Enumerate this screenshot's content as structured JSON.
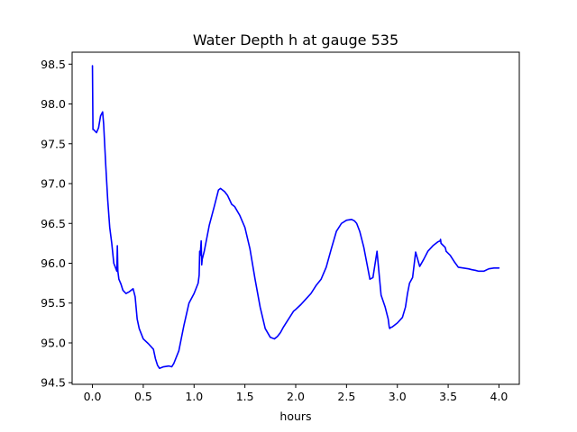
{
  "chart_data": {
    "type": "line",
    "title": "Water Depth h at gauge 535",
    "xlabel": "hours",
    "ylabel": "",
    "xlim": [
      -0.2,
      4.2
    ],
    "ylim": [
      94.48,
      98.65
    ],
    "grid": false,
    "legend": "none",
    "x_ticks": [
      0.0,
      0.5,
      1.0,
      1.5,
      2.0,
      2.5,
      3.0,
      3.5,
      4.0
    ],
    "x_tick_labels": [
      "0.0",
      "0.5",
      "1.0",
      "1.5",
      "2.0",
      "2.5",
      "3.0",
      "3.5",
      "4.0"
    ],
    "y_ticks": [
      94.5,
      95.0,
      95.5,
      96.0,
      96.5,
      97.0,
      97.5,
      98.0,
      98.5
    ],
    "y_tick_labels": [
      "94.5",
      "95.0",
      "95.5",
      "96.0",
      "96.5",
      "97.0",
      "97.5",
      "98.0",
      "98.5"
    ],
    "series": [
      {
        "color": "#0000ff",
        "x": [
          0.0,
          0.005,
          0.01,
          0.04,
          0.06,
          0.08,
          0.1,
          0.11,
          0.13,
          0.15,
          0.17,
          0.19,
          0.21,
          0.24,
          0.245,
          0.25,
          0.26,
          0.28,
          0.3,
          0.33,
          0.36,
          0.4,
          0.42,
          0.44,
          0.46,
          0.5,
          0.55,
          0.6,
          0.62,
          0.64,
          0.66,
          0.7,
          0.75,
          0.78,
          0.8,
          0.85,
          0.9,
          0.95,
          1.0,
          1.04,
          1.05,
          1.055,
          1.06,
          1.07,
          1.075,
          1.08,
          1.1,
          1.15,
          1.2,
          1.24,
          1.26,
          1.3,
          1.33,
          1.37,
          1.4,
          1.45,
          1.5,
          1.55,
          1.6,
          1.65,
          1.7,
          1.75,
          1.79,
          1.82,
          1.85,
          1.88,
          1.92,
          1.98,
          2.0,
          2.05,
          2.1,
          2.15,
          2.2,
          2.25,
          2.3,
          2.35,
          2.4,
          2.45,
          2.5,
          2.55,
          2.58,
          2.6,
          2.63,
          2.67,
          2.7,
          2.73,
          2.76,
          2.8,
          2.84,
          2.88,
          2.91,
          2.92,
          2.925,
          2.93,
          2.95,
          3.0,
          3.05,
          3.08,
          3.1,
          3.12,
          3.15,
          3.18,
          3.22,
          3.26,
          3.3,
          3.35,
          3.4,
          3.42,
          3.425,
          3.43,
          3.47,
          3.475,
          3.48,
          3.52,
          3.56,
          3.6,
          3.65,
          3.7,
          3.73,
          3.77,
          3.8,
          3.85,
          3.9,
          3.95,
          4.0
        ],
        "y": [
          98.48,
          97.68,
          97.68,
          97.64,
          97.7,
          97.85,
          97.9,
          97.75,
          97.25,
          96.8,
          96.45,
          96.25,
          96.0,
          95.9,
          96.22,
          95.9,
          95.8,
          95.74,
          95.66,
          95.62,
          95.64,
          95.68,
          95.58,
          95.3,
          95.18,
          95.05,
          94.99,
          94.92,
          94.8,
          94.72,
          94.68,
          94.7,
          94.71,
          94.7,
          94.74,
          94.9,
          95.22,
          95.5,
          95.62,
          95.75,
          95.85,
          96.15,
          96.1,
          96.28,
          95.98,
          96.05,
          96.15,
          96.48,
          96.72,
          96.92,
          96.94,
          96.9,
          96.85,
          96.74,
          96.71,
          96.6,
          96.45,
          96.18,
          95.8,
          95.45,
          95.18,
          95.07,
          95.05,
          95.08,
          95.13,
          95.2,
          95.28,
          95.4,
          95.42,
          95.48,
          95.55,
          95.62,
          95.72,
          95.8,
          95.95,
          96.18,
          96.4,
          96.5,
          96.54,
          96.55,
          96.53,
          96.5,
          96.4,
          96.2,
          96.0,
          95.8,
          95.82,
          96.15,
          95.6,
          95.45,
          95.3,
          95.2,
          95.18,
          95.19,
          95.2,
          95.25,
          95.32,
          95.45,
          95.62,
          95.75,
          95.82,
          96.14,
          95.96,
          96.05,
          96.15,
          96.22,
          96.27,
          96.28,
          96.3,
          96.25,
          96.2,
          96.18,
          96.15,
          96.1,
          96.02,
          95.95,
          95.94,
          95.93,
          95.92,
          95.91,
          95.9,
          95.9,
          95.93,
          95.94,
          95.94
        ]
      }
    ]
  }
}
